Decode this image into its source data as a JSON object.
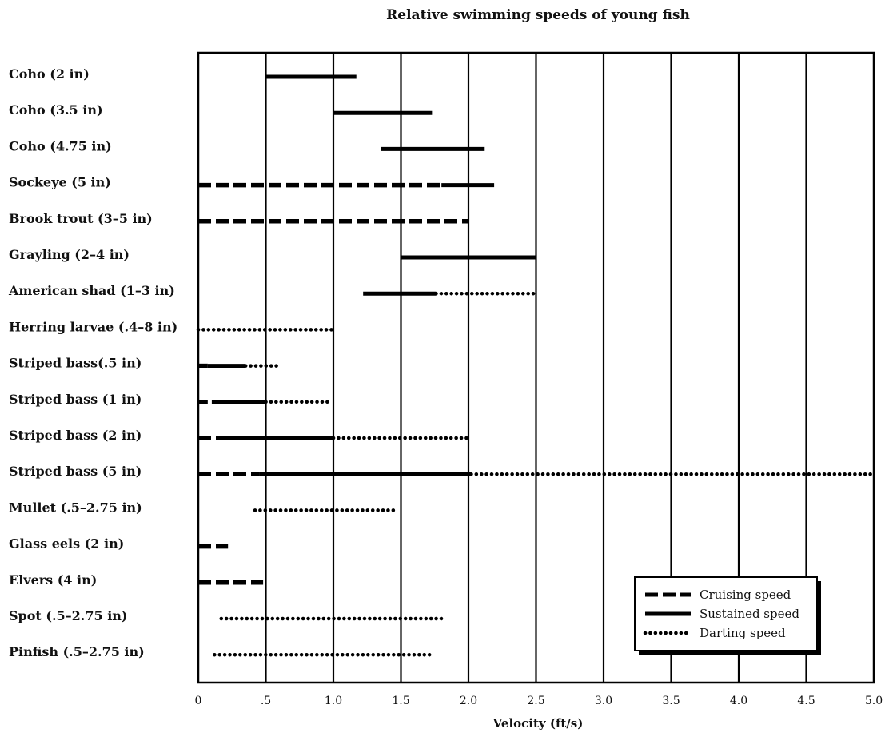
{
  "chart_data": {
    "type": "bar",
    "orientation": "horizontal-range",
    "title": "Relative swimming speeds of young fish",
    "xlabel": "Velocity (ft/s)",
    "ylabel": "",
    "xlim": [
      0,
      5.0
    ],
    "xticks": [
      {
        "value": 0,
        "label": "0"
      },
      {
        "value": 0.5,
        "label": ".5"
      },
      {
        "value": 1.0,
        "label": "1.0"
      },
      {
        "value": 1.5,
        "label": "1.5"
      },
      {
        "value": 2.0,
        "label": "2.0"
      },
      {
        "value": 2.5,
        "label": "2.5"
      },
      {
        "value": 3.0,
        "label": "3.0"
      },
      {
        "value": 3.5,
        "label": "3.5"
      },
      {
        "value": 4.0,
        "label": "4.0"
      },
      {
        "value": 4.5,
        "label": "4.5"
      },
      {
        "value": 5.0,
        "label": "5.0"
      }
    ],
    "grid": "vertical",
    "legend_position": "bottom-right",
    "series": [
      {
        "name": "Cruising speed",
        "style": "dashed"
      },
      {
        "name": "Sustained speed",
        "style": "solid"
      },
      {
        "name": "Darting speed",
        "style": "dotted"
      }
    ],
    "categories": [
      {
        "label": "Coho (2 in)",
        "sustained": [
          0.5,
          1.17
        ]
      },
      {
        "label": "Coho (3.5 in)",
        "sustained": [
          1.0,
          1.73
        ]
      },
      {
        "label": "Coho (4.75 in)",
        "sustained": [
          1.35,
          2.12
        ]
      },
      {
        "label": "Sockeye (5 in)",
        "cruising": [
          0,
          1.8
        ],
        "sustained": [
          1.8,
          2.19
        ]
      },
      {
        "label": "Brook trout (3–5 in)",
        "cruising": [
          0,
          2.0
        ]
      },
      {
        "label": "Grayling (2–4 in)",
        "sustained": [
          1.5,
          2.5
        ]
      },
      {
        "label": "American shad (1–3 in)",
        "sustained": [
          1.22,
          1.76
        ],
        "darting": [
          1.76,
          2.5
        ]
      },
      {
        "label": "Herring larvae (.4–8 in)",
        "darting": [
          0,
          1.0
        ]
      },
      {
        "label": "Striped bass(.5 in)",
        "cruising": [
          0,
          0.07
        ],
        "sustained": [
          0.07,
          0.35
        ],
        "darting": [
          0.35,
          0.58
        ]
      },
      {
        "label": "Striped bass (1 in)",
        "cruising": [
          0,
          0.07
        ],
        "sustained": [
          0.1,
          0.5
        ],
        "darting": [
          0.5,
          0.96
        ]
      },
      {
        "label": "Striped bass (2 in)",
        "cruising": [
          0,
          0.23
        ],
        "sustained": [
          0.23,
          1.0
        ],
        "darting": [
          1.0,
          2.0
        ]
      },
      {
        "label": "Striped bass (5 in)",
        "cruising": [
          0,
          0.45
        ],
        "sustained": [
          0.45,
          2.02
        ],
        "darting": [
          2.02,
          5.0
        ]
      },
      {
        "label": "Mullet (.5–2.75 in)",
        "darting": [
          0.42,
          1.47
        ]
      },
      {
        "label": "Glass eels (2 in)",
        "cruising": [
          0,
          0.22
        ]
      },
      {
        "label": "Elvers (4 in)",
        "cruising": [
          0,
          0.48
        ]
      },
      {
        "label": "Spot (.5–2.75 in)",
        "darting": [
          0.17,
          1.8
        ]
      },
      {
        "label": "Pinfish (.5–2.75 in)",
        "darting": [
          0.12,
          1.74
        ]
      }
    ]
  }
}
